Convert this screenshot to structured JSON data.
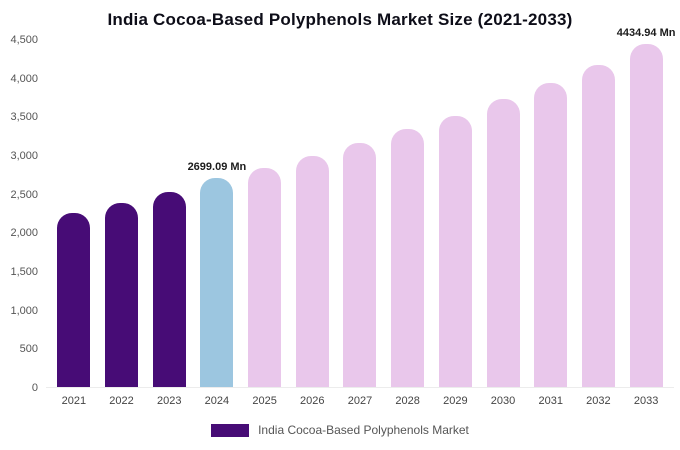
{
  "title": "India Cocoa-Based Polyphenols Market Size (2021-2033)",
  "legend": {
    "label": "India Cocoa-Based Polyphenols Market",
    "color": "#470c76"
  },
  "chart_data": {
    "type": "bar",
    "title": "India Cocoa-Based Polyphenols Market Size (2021-2033)",
    "categories": [
      "2021",
      "2022",
      "2023",
      "2024",
      "2025",
      "2026",
      "2027",
      "2028",
      "2029",
      "2030",
      "2031",
      "2032",
      "2033"
    ],
    "values": [
      2250,
      2380,
      2520,
      2699.09,
      2830,
      2990,
      3150,
      3330,
      3510,
      3720,
      3930,
      4170,
      4434.94
    ],
    "unit": "Mn",
    "ylim": [
      0,
      4500
    ],
    "ytick_step": 500,
    "grid": false,
    "legend_position": "bottom",
    "xlabel": "",
    "ylabel": "",
    "bar_segments": {
      "historical": [
        0,
        1,
        2
      ],
      "current": [
        3
      ],
      "forecast": [
        4,
        5,
        6,
        7,
        8,
        9,
        10,
        11,
        12
      ]
    },
    "colors": {
      "historical": "#470c76",
      "current": "#9cc6e0",
      "forecast": "#e9c7eb"
    },
    "data_labels": [
      {
        "index": 3,
        "text": "2699.09 Mn"
      },
      {
        "index": 12,
        "text": "4434.94 Mn"
      }
    ]
  }
}
